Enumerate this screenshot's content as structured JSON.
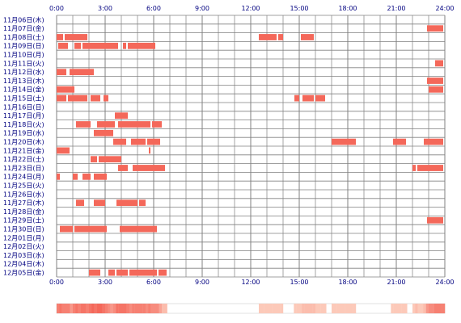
{
  "chart_data": {
    "type": "timeline",
    "x_ticks": [
      "0:00",
      "3:00",
      "6:00",
      "9:00",
      "12:00",
      "15:00",
      "18:00",
      "21:00",
      "24:00"
    ],
    "x_range_hours": [
      0,
      24
    ],
    "grid": true,
    "colors": {
      "bar": "#f4685a",
      "grid": "#808080",
      "label": "#000080",
      "heat_low": "#ffe8d8",
      "heat_high": "#f4685a"
    },
    "rows": [
      {
        "label": "11月06日(木)",
        "segments": []
      },
      {
        "label": "11月07日(金)",
        "segments": [
          [
            22.9,
            23.9
          ]
        ]
      },
      {
        "label": "11月08日(土)",
        "segments": [
          [
            0.0,
            0.4
          ],
          [
            0.5,
            1.9
          ],
          [
            12.5,
            13.6
          ],
          [
            13.7,
            14.0
          ],
          [
            15.1,
            15.9
          ]
        ]
      },
      {
        "label": "11月09日(日)",
        "segments": [
          [
            0.1,
            0.7
          ],
          [
            1.1,
            1.5
          ],
          [
            1.6,
            3.8
          ],
          [
            4.1,
            4.3
          ],
          [
            4.4,
            6.1
          ]
        ]
      },
      {
        "label": "11月10日(月)",
        "segments": []
      },
      {
        "label": "11月11日(火)",
        "segments": [
          [
            23.4,
            23.9
          ]
        ]
      },
      {
        "label": "11月12日(水)",
        "segments": [
          [
            0.0,
            0.6
          ],
          [
            0.8,
            2.3
          ]
        ]
      },
      {
        "label": "11月13日(木)",
        "segments": [
          [
            22.9,
            23.9
          ]
        ]
      },
      {
        "label": "11月14日(金)",
        "segments": [
          [
            0.0,
            1.1
          ],
          [
            23.0,
            23.9
          ]
        ]
      },
      {
        "label": "11月15日(土)",
        "segments": [
          [
            0.0,
            0.6
          ],
          [
            0.7,
            1.9
          ],
          [
            2.1,
            2.7
          ],
          [
            2.9,
            3.2
          ],
          [
            14.7,
            15.0
          ],
          [
            15.2,
            15.9
          ],
          [
            16.0,
            16.6
          ]
        ]
      },
      {
        "label": "11月16日(日)",
        "segments": []
      },
      {
        "label": "11月17日(月)",
        "segments": [
          [
            3.6,
            4.4
          ]
        ]
      },
      {
        "label": "11月18日(火)",
        "segments": [
          [
            1.2,
            2.1
          ],
          [
            2.5,
            3.6
          ],
          [
            3.8,
            5.8
          ],
          [
            5.9,
            6.5
          ]
        ]
      },
      {
        "label": "11月19日(水)",
        "segments": [
          [
            2.3,
            3.5
          ]
        ]
      },
      {
        "label": "11月20日(木)",
        "segments": [
          [
            3.5,
            4.3
          ],
          [
            4.6,
            5.5
          ],
          [
            5.6,
            6.4
          ],
          [
            17.0,
            18.5
          ],
          [
            20.8,
            21.6
          ],
          [
            22.7,
            23.9
          ]
        ]
      },
      {
        "label": "11月21日(金)",
        "segments": [
          [
            0.0,
            0.8
          ],
          [
            5.7,
            5.8
          ]
        ]
      },
      {
        "label": "11月22日(土)",
        "segments": [
          [
            2.1,
            2.5
          ],
          [
            2.6,
            4.0
          ]
        ]
      },
      {
        "label": "11月23日(日)",
        "segments": [
          [
            3.8,
            4.4
          ],
          [
            4.7,
            6.7
          ],
          [
            22.0,
            22.2
          ],
          [
            22.3,
            23.9
          ]
        ]
      },
      {
        "label": "11月24日(月)",
        "segments": [
          [
            0.0,
            0.2
          ],
          [
            1.0,
            1.3
          ],
          [
            1.6,
            2.1
          ],
          [
            2.3,
            3.1
          ]
        ]
      },
      {
        "label": "11月25日(火)",
        "segments": []
      },
      {
        "label": "11月26日(水)",
        "segments": []
      },
      {
        "label": "11月27日(木)",
        "segments": [
          [
            1.2,
            1.7
          ],
          [
            2.3,
            3.0
          ],
          [
            3.7,
            5.0
          ],
          [
            5.1,
            5.5
          ]
        ]
      },
      {
        "label": "11月28日(金)",
        "segments": []
      },
      {
        "label": "11月29日(土)",
        "segments": [
          [
            22.9,
            23.9
          ]
        ]
      },
      {
        "label": "11月30日(日)",
        "segments": [
          [
            0.2,
            1.0
          ],
          [
            1.1,
            3.1
          ],
          [
            3.9,
            6.2
          ]
        ]
      },
      {
        "label": "12月01日(月)",
        "segments": []
      },
      {
        "label": "12月02日(火)",
        "segments": []
      },
      {
        "label": "12月03日(水)",
        "segments": []
      },
      {
        "label": "12月04日(木)",
        "segments": []
      },
      {
        "label": "12月05日(金)",
        "segments": [
          [
            2.0,
            2.7
          ],
          [
            3.2,
            3.6
          ],
          [
            3.7,
            4.4
          ],
          [
            4.5,
            6.2
          ],
          [
            6.3,
            6.8
          ]
        ]
      }
    ]
  }
}
